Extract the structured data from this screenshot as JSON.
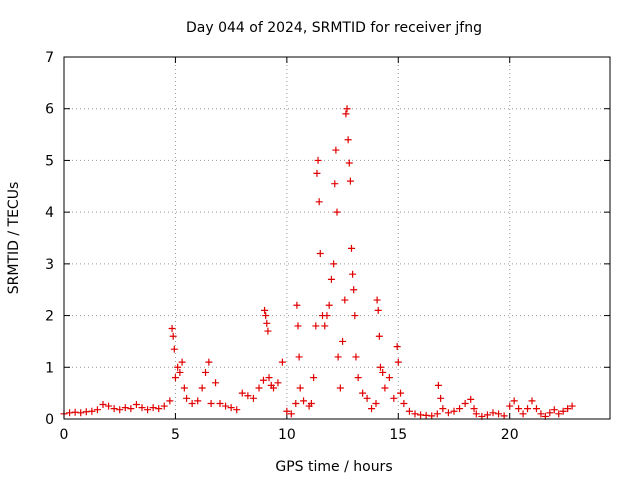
{
  "chart_data": {
    "type": "scatter",
    "title": "Day 044 of 2024, SRMTID for receiver jfng",
    "xlabel": "GPS time / hours",
    "ylabel": "SRMTID / TECUs",
    "xlim": [
      0,
      24.5
    ],
    "ylim": [
      0,
      7
    ],
    "xticks": [
      0,
      5,
      10,
      15,
      20
    ],
    "yticks": [
      0,
      1,
      2,
      3,
      4,
      5,
      6,
      7
    ],
    "grid": true,
    "marker": "+",
    "color": "#e00000",
    "series": [
      {
        "name": "SRMTID",
        "x": [
          0.0,
          0.25,
          0.5,
          0.75,
          1.0,
          1.25,
          1.5,
          1.75,
          2.0,
          2.25,
          2.5,
          2.75,
          3.0,
          3.25,
          3.5,
          3.75,
          4.0,
          4.25,
          4.5,
          4.75,
          4.85,
          4.9,
          4.95,
          5.0,
          5.1,
          5.2,
          5.3,
          5.4,
          5.5,
          5.75,
          6.0,
          6.2,
          6.35,
          6.5,
          6.6,
          6.8,
          7.0,
          7.25,
          7.5,
          7.75,
          8.0,
          8.25,
          8.5,
          8.75,
          8.95,
          9.0,
          9.05,
          9.1,
          9.15,
          9.2,
          9.3,
          9.4,
          9.6,
          9.8,
          10.0,
          10.2,
          10.4,
          10.45,
          10.5,
          10.55,
          10.6,
          10.75,
          11.0,
          11.1,
          11.2,
          11.3,
          11.35,
          11.4,
          11.45,
          11.5,
          11.6,
          11.7,
          11.8,
          11.9,
          12.0,
          12.1,
          12.15,
          12.2,
          12.25,
          12.3,
          12.4,
          12.5,
          12.6,
          12.65,
          12.7,
          12.75,
          12.8,
          12.85,
          12.9,
          12.95,
          13.0,
          13.05,
          13.1,
          13.2,
          13.4,
          13.6,
          13.8,
          14.0,
          14.05,
          14.1,
          14.15,
          14.2,
          14.3,
          14.4,
          14.6,
          14.8,
          14.95,
          15.0,
          15.1,
          15.25,
          15.5,
          15.75,
          16.0,
          16.25,
          16.5,
          16.75,
          16.8,
          16.9,
          17.0,
          17.25,
          17.5,
          17.75,
          18.0,
          18.25,
          18.4,
          18.5,
          18.75,
          19.0,
          19.25,
          19.5,
          19.75,
          20.0,
          20.2,
          20.4,
          20.6,
          20.8,
          21.0,
          21.2,
          21.4,
          21.6,
          21.8,
          22.0,
          22.2,
          22.4,
          22.6,
          22.8
        ],
        "y": [
          0.1,
          0.12,
          0.13,
          0.12,
          0.14,
          0.15,
          0.18,
          0.28,
          0.25,
          0.2,
          0.18,
          0.22,
          0.2,
          0.28,
          0.22,
          0.18,
          0.22,
          0.2,
          0.25,
          0.35,
          1.75,
          1.6,
          1.35,
          0.8,
          1.0,
          0.9,
          1.1,
          0.6,
          0.4,
          0.3,
          0.35,
          0.6,
          0.9,
          1.1,
          0.3,
          0.7,
          0.3,
          0.25,
          0.22,
          0.18,
          0.5,
          0.45,
          0.4,
          0.6,
          0.75,
          2.1,
          2.0,
          1.85,
          1.7,
          0.8,
          0.65,
          0.6,
          0.7,
          1.1,
          0.15,
          0.1,
          0.3,
          2.2,
          1.8,
          1.2,
          0.6,
          0.35,
          0.25,
          0.3,
          0.8,
          1.8,
          4.75,
          5.0,
          4.2,
          3.2,
          2.0,
          1.8,
          2.0,
          2.2,
          2.7,
          3.0,
          4.55,
          5.2,
          4.0,
          1.2,
          0.6,
          1.5,
          2.3,
          5.9,
          6.0,
          5.4,
          4.95,
          4.6,
          3.3,
          2.8,
          2.5,
          2.0,
          1.2,
          0.8,
          0.5,
          0.4,
          0.2,
          0.3,
          2.3,
          2.1,
          1.6,
          1.0,
          0.9,
          0.6,
          0.8,
          0.4,
          1.4,
          1.1,
          0.5,
          0.3,
          0.15,
          0.1,
          0.08,
          0.07,
          0.06,
          0.1,
          0.65,
          0.4,
          0.2,
          0.12,
          0.15,
          0.2,
          0.3,
          0.38,
          0.2,
          0.1,
          0.05,
          0.08,
          0.12,
          0.1,
          0.06,
          0.25,
          0.35,
          0.2,
          0.1,
          0.2,
          0.35,
          0.2,
          0.1,
          0.05,
          0.12,
          0.18,
          0.1,
          0.15,
          0.2,
          0.25
        ]
      }
    ]
  }
}
